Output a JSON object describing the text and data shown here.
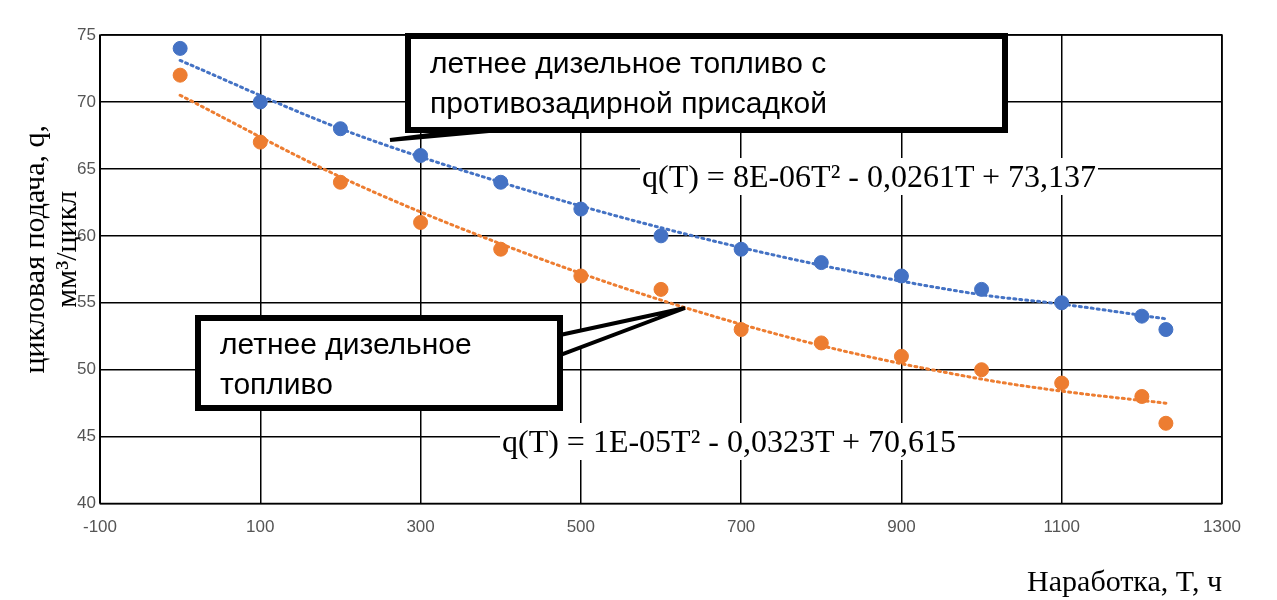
{
  "chart_data": {
    "type": "scatter",
    "xlabel": "Наработка, T, ч",
    "ylabel": "цикловая подача, q, мм³/цикл",
    "xlim": [
      -100,
      1300
    ],
    "xticks": [
      -100,
      100,
      300,
      500,
      700,
      900,
      1100,
      1300
    ],
    "ylim": [
      40,
      75
    ],
    "yticks": [
      40,
      45,
      50,
      55,
      60,
      65,
      70,
      75
    ],
    "grid": true,
    "legend": false,
    "marker": "circle",
    "series": [
      {
        "color": "#4472c4",
        "x": [
          0,
          100,
          200,
          300,
          400,
          500,
          600,
          700,
          800,
          900,
          1000,
          1100,
          1200,
          1230
        ],
        "values": [
          74,
          70,
          68,
          66,
          64,
          62,
          60,
          59,
          58,
          57,
          56,
          55,
          54,
          53
        ]
      },
      {
        "color": "#ed7d31",
        "x": [
          0,
          100,
          200,
          300,
          400,
          500,
          600,
          700,
          800,
          900,
          1000,
          1100,
          1200,
          1230
        ],
        "values": [
          72,
          67,
          64,
          61,
          59,
          57,
          56,
          53,
          52,
          51,
          50,
          49,
          48,
          46
        ]
      },
      {
        "type": "line",
        "line_style": "dotted",
        "marker": "none",
        "color": "#4472c4",
        "x": [
          0,
          200,
          400,
          600,
          800,
          1000,
          1100,
          1230
        ],
        "values": [
          73.1,
          68.0,
          64.0,
          60.6,
          57.8,
          55.6,
          54.9,
          53.8
        ]
      },
      {
        "type": "line",
        "line_style": "dotted",
        "marker": "none",
        "color": "#ed7d31",
        "x": [
          0,
          200,
          400,
          600,
          800,
          1000,
          1100,
          1230
        ],
        "values": [
          70.5,
          64.4,
          59.4,
          55.2,
          51.8,
          49.3,
          48.4,
          47.5
        ]
      }
    ],
    "annotations": [
      "летнее дизельное топливо с противозадирной присадкой",
      "q(T) = 8E-06T² - 0,0261T + 73,137",
      "летнее дизельное топливо",
      "q(T) = 1E-05T² - 0,0323T + 70,615"
    ]
  }
}
